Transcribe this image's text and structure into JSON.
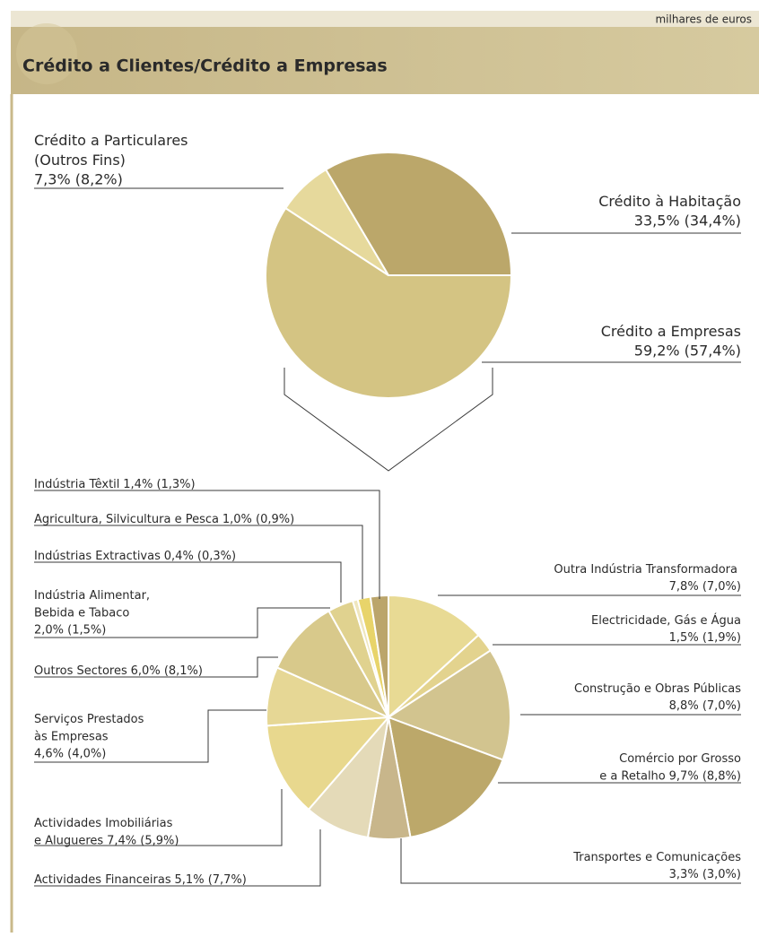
{
  "header": {
    "unit": "milhares de euros",
    "title": "Crédito a Clientes/Crédito a Empresas"
  },
  "chart_data": [
    {
      "type": "pie",
      "categories": [
        [
          "Crédito a Empresas"
        ],
        [
          "Crédito a Particulares",
          "(Outros Fins)"
        ],
        [
          "Crédito à Habitação"
        ]
      ],
      "values": [
        59.2,
        7.3,
        33.5
      ],
      "value_labels": [
        "59,2% (57,4%)",
        "7,3% (8,2%)",
        "33,5% (34,4%)"
      ],
      "colors": [
        "#d4c483",
        "#e6d99c",
        "#bba76a"
      ]
    },
    {
      "type": "pie",
      "categories": [
        [
          "Outra Indústria Transformadora"
        ],
        [
          "Electricidade, Gás e Água"
        ],
        [
          "Construção e Obras Públicas"
        ],
        [
          "Comércio por Grosso",
          "e a Retalho"
        ],
        [
          "Transportes e Comunicações"
        ],
        [
          "Actividades Financeiras"
        ],
        [
          "Actividades Imobiliárias",
          "e Alugueres"
        ],
        [
          "Serviços Prestados",
          "às Empresas"
        ],
        [
          "Outros Sectores"
        ],
        [
          "Indústria Alimentar,",
          "Bebida e Tabaco"
        ],
        [
          "Indústrias Extractivas"
        ],
        [
          "Agricultura, Silvicultura e Pesca"
        ],
        [
          "Indústria Têxtil"
        ]
      ],
      "values": [
        7.8,
        1.5,
        8.8,
        9.7,
        3.3,
        5.1,
        7.4,
        4.6,
        6.0,
        2.0,
        0.4,
        1.0,
        1.4
      ],
      "value_labels": [
        "7,8% (7,0%)",
        "1,5% (1,9%)",
        "8,8% (7,0%)",
        "9,7% (8,8%)",
        "3,3% (3,0%)",
        "5,1% (7,7%)",
        "7,4% (5,9%)",
        "4,6% (4,0%)",
        "6,0% (8,1%)",
        "2,0% (1,5%)",
        "0,4% (0,3%)",
        "1,0% (0,9%)",
        "1,4% (1,3%)"
      ],
      "colors": [
        "#e8da94",
        "#e3d38e",
        "#d2c48f",
        "#bca86a",
        "#c8b68b",
        "#e4dab8",
        "#e8d88e",
        "#e6d795",
        "#d8c98b",
        "#e0d28f",
        "#efe6bd",
        "#e8d46a",
        "#bba56b"
      ]
    }
  ]
}
